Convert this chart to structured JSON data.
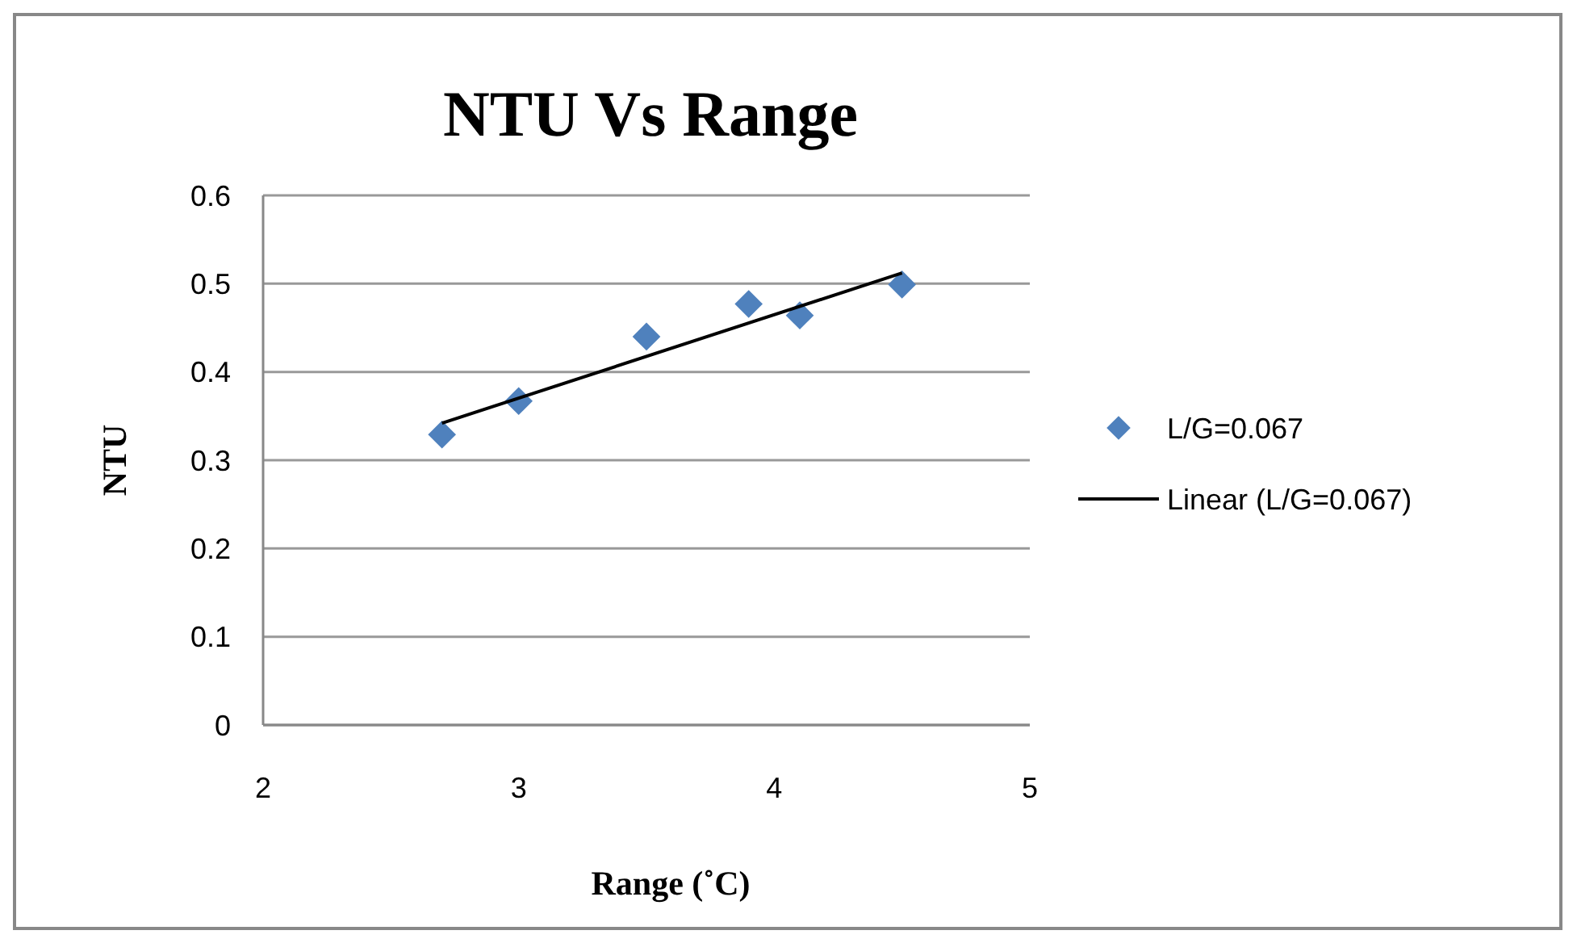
{
  "chart_data": {
    "type": "scatter",
    "title": "NTU Vs Range",
    "xlabel": "Range (˚C)",
    "ylabel": "NTU",
    "xlim": [
      2,
      5
    ],
    "xticks": [
      2,
      3,
      4,
      5
    ],
    "ylim": [
      0,
      0.6
    ],
    "yticks": [
      0,
      0.1,
      0.2,
      0.3,
      0.4,
      0.5,
      0.6
    ],
    "grid": "y",
    "legend": "right",
    "series": [
      {
        "name": "L/G=0.067",
        "marker": "diamond",
        "color": "#4f81bd",
        "x": [
          2.7,
          3.0,
          3.5,
          3.9,
          4.1,
          4.5
        ],
        "values": [
          0.329,
          0.367,
          0.44,
          0.477,
          0.464,
          0.499
        ]
      },
      {
        "name": "Linear (L/G=0.067)",
        "type": "line",
        "marker": "none",
        "line_style": "solid",
        "color": "#000000",
        "x": [
          2.7,
          4.5
        ],
        "values": [
          0.342,
          0.512
        ]
      }
    ]
  }
}
